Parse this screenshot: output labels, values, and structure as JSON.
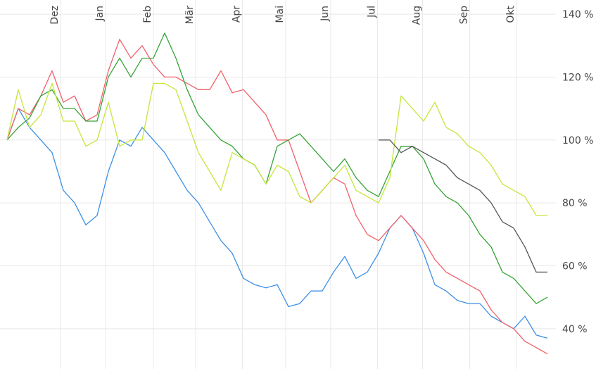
{
  "chart_data": {
    "type": "line",
    "xlim": [
      0,
      48.75
    ],
    "xticks": [
      {
        "value": 4.75,
        "label": "Dez"
      },
      {
        "value": 8.75,
        "label": "Jan"
      },
      {
        "value": 13,
        "label": "Feb"
      },
      {
        "value": 16.75,
        "label": "Mär"
      },
      {
        "value": 20.9,
        "label": "Apr"
      },
      {
        "value": 24.75,
        "label": "Mai"
      },
      {
        "value": 28.75,
        "label": "Jun"
      },
      {
        "value": 32.9,
        "label": "Jul"
      },
      {
        "value": 36.9,
        "label": "Aug"
      },
      {
        "value": 41.1,
        "label": "Sep"
      },
      {
        "value": 45.25,
        "label": "Okt"
      }
    ],
    "ylim": [
      27.2,
      144.5
    ],
    "yticks": [
      {
        "value": 40,
        "label": "40 %"
      },
      {
        "value": 60,
        "label": "60 %"
      },
      {
        "value": 80,
        "label": "80 %"
      },
      {
        "value": 100,
        "label": "100 %"
      },
      {
        "value": 120,
        "label": "120 %"
      },
      {
        "value": 140,
        "label": "140 %"
      }
    ],
    "grid": true,
    "series": [
      {
        "color": "#3c8fe6",
        "values": [
          100,
          110,
          104,
          100,
          96,
          84,
          80,
          73,
          76,
          90,
          100,
          98,
          104,
          100,
          96,
          90,
          84,
          80,
          74,
          68,
          64,
          56,
          54,
          53,
          54,
          47,
          48,
          52,
          52,
          58,
          63,
          56,
          58,
          64,
          72,
          76,
          72,
          64,
          54,
          52,
          49,
          48,
          48,
          44,
          42,
          40,
          44,
          38,
          37
        ]
      },
      {
        "color": "#f0606a",
        "values": [
          100,
          110,
          108,
          114,
          122,
          112,
          114,
          106,
          108,
          122,
          132,
          126,
          130,
          124,
          120,
          120,
          118,
          116,
          116,
          122,
          115,
          116,
          112,
          108,
          100,
          100,
          90,
          80,
          84,
          88,
          86,
          76,
          70,
          68,
          72,
          76,
          72,
          68,
          62,
          58,
          56,
          54,
          52,
          46,
          42,
          40,
          36,
          34,
          32
        ]
      },
      {
        "color": "#35a335",
        "values": [
          100,
          104,
          107,
          114,
          116,
          110,
          110,
          106,
          106,
          120,
          126,
          120,
          126,
          126,
          134,
          126,
          116,
          108,
          104,
          100,
          98,
          94,
          92,
          86,
          98,
          100,
          102,
          98,
          94,
          90,
          94,
          88,
          84,
          82,
          90,
          98,
          98,
          94,
          86,
          82,
          80,
          76,
          70,
          66,
          58,
          56,
          52,
          48,
          50
        ]
      },
      {
        "color": "#c4e63c",
        "values": [
          100,
          116,
          104,
          108,
          118,
          106,
          106,
          98,
          100,
          112,
          98,
          100,
          100,
          118,
          118,
          116,
          106,
          96,
          90,
          84,
          96,
          94,
          92,
          86,
          92,
          90,
          82,
          80,
          84,
          88,
          92,
          84,
          82,
          80,
          88,
          114,
          110,
          106,
          112,
          104,
          102,
          98,
          96,
          92,
          86,
          84,
          82,
          76,
          76
        ]
      },
      {
        "color": "#555555",
        "values": [
          null,
          null,
          null,
          null,
          null,
          null,
          null,
          null,
          null,
          null,
          null,
          null,
          null,
          null,
          null,
          null,
          null,
          null,
          null,
          null,
          null,
          null,
          null,
          null,
          null,
          null,
          null,
          null,
          null,
          null,
          null,
          null,
          null,
          100,
          100,
          96,
          98,
          96,
          94,
          92,
          88,
          86,
          84,
          80,
          74,
          72,
          66,
          58,
          58
        ]
      }
    ]
  }
}
